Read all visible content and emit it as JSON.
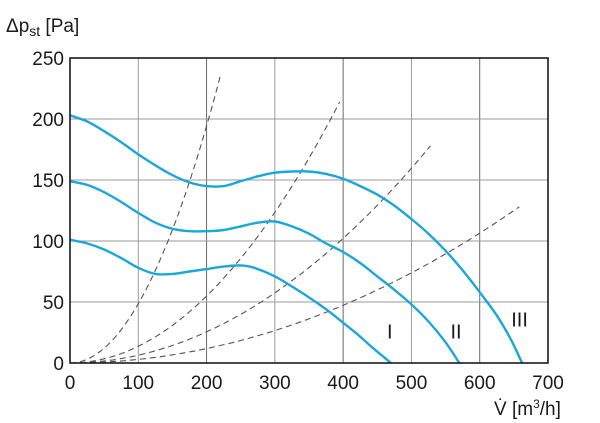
{
  "chart_data": {
    "type": "line",
    "ylabel_main": "Δp",
    "ylabel_sub": "st",
    "ylabel_unit": " [Pa]",
    "xlabel_symbol": "V̇",
    "xlabel_unit": " [m",
    "xlabel_sup": "3",
    "xlabel_tail": "/h]",
    "xlim": [
      0,
      700
    ],
    "ylim": [
      0,
      250
    ],
    "x_ticks": [
      "0",
      "100",
      "200",
      "300",
      "400",
      "500",
      "600",
      "700"
    ],
    "y_ticks": [
      "0",
      "50",
      "100",
      "150",
      "200",
      "250"
    ],
    "x_tick_values": [
      0,
      100,
      200,
      300,
      400,
      500,
      600,
      700
    ],
    "y_tick_values": [
      0,
      50,
      100,
      150,
      200,
      250
    ],
    "grid": true,
    "fan_curves_color": "#1aa7d9",
    "system_curves_color": "#555555",
    "series": [
      {
        "name": "I",
        "label_at": [
          470,
          20
        ],
        "points": [
          [
            0,
            101
          ],
          [
            25,
            98
          ],
          [
            50,
            93
          ],
          [
            75,
            86
          ],
          [
            100,
            78
          ],
          [
            125,
            73
          ],
          [
            150,
            73
          ],
          [
            175,
            75
          ],
          [
            200,
            77
          ],
          [
            225,
            79
          ],
          [
            250,
            80
          ],
          [
            270,
            78
          ],
          [
            300,
            71
          ],
          [
            330,
            61
          ],
          [
            360,
            50
          ],
          [
            380,
            42
          ],
          [
            400,
            33
          ],
          [
            420,
            24
          ],
          [
            440,
            14
          ],
          [
            455,
            7
          ],
          [
            470,
            0
          ]
        ]
      },
      {
        "name": "II",
        "label_at": [
          563,
          20
        ],
        "points": [
          [
            0,
            149
          ],
          [
            25,
            146
          ],
          [
            50,
            140
          ],
          [
            75,
            132
          ],
          [
            100,
            123
          ],
          [
            125,
            115
          ],
          [
            150,
            110
          ],
          [
            175,
            108
          ],
          [
            200,
            108
          ],
          [
            225,
            109
          ],
          [
            250,
            112
          ],
          [
            275,
            115
          ],
          [
            300,
            116
          ],
          [
            325,
            112
          ],
          [
            350,
            106
          ],
          [
            375,
            98
          ],
          [
            400,
            91
          ],
          [
            425,
            82
          ],
          [
            450,
            71
          ],
          [
            475,
            60
          ],
          [
            500,
            48
          ],
          [
            525,
            34
          ],
          [
            550,
            17
          ],
          [
            570,
            0
          ]
        ]
      },
      {
        "name": "III",
        "label_at": [
          652,
          30
        ],
        "points": [
          [
            0,
            203
          ],
          [
            25,
            198
          ],
          [
            50,
            190
          ],
          [
            75,
            181
          ],
          [
            100,
            171
          ],
          [
            125,
            162
          ],
          [
            150,
            154
          ],
          [
            175,
            148
          ],
          [
            200,
            145
          ],
          [
            225,
            145
          ],
          [
            250,
            149
          ],
          [
            275,
            153
          ],
          [
            300,
            156
          ],
          [
            325,
            157
          ],
          [
            350,
            157
          ],
          [
            375,
            155
          ],
          [
            400,
            151
          ],
          [
            425,
            145
          ],
          [
            450,
            138
          ],
          [
            475,
            129
          ],
          [
            500,
            118
          ],
          [
            525,
            106
          ],
          [
            550,
            92
          ],
          [
            575,
            76
          ],
          [
            600,
            58
          ],
          [
            625,
            39
          ],
          [
            645,
            20
          ],
          [
            662,
            0
          ]
        ]
      }
    ],
    "system_curves": [
      {
        "max_x": 220,
        "max_y": 235
      },
      {
        "max_x": 395,
        "max_y": 214
      },
      {
        "max_x": 528,
        "max_y": 178
      },
      {
        "max_x": 658,
        "max_y": 128
      }
    ]
  }
}
